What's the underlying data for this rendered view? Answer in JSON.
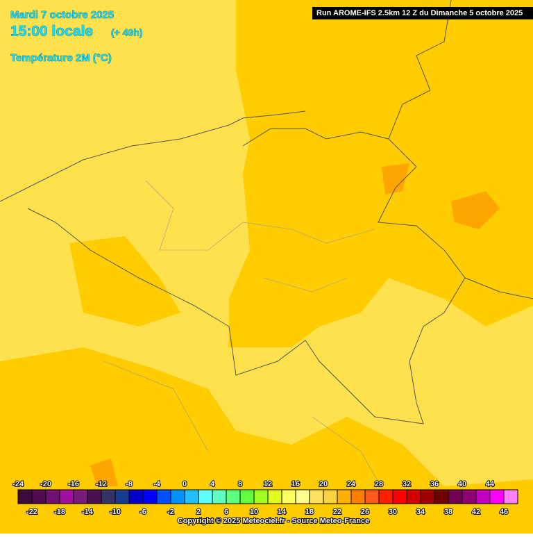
{
  "header": {
    "date": "Mardi 7 octobre 2025",
    "time": "15:00 locale",
    "lead": "(+ 49h)",
    "field": "Température 2M (°C)",
    "run": "Run AROME-IFS 2.5km 12 Z du Dimanche 5 octobre 2025"
  },
  "legend": {
    "ticks": [
      -24,
      -22,
      -20,
      -18,
      -16,
      -14,
      -12,
      -10,
      -8,
      -6,
      -4,
      -2,
      0,
      2,
      4,
      6,
      8,
      10,
      12,
      14,
      16,
      18,
      20,
      22,
      24,
      26,
      28,
      30,
      32,
      34,
      36,
      38,
      40,
      42,
      44,
      46
    ],
    "colors": [
      "#3c0a3c",
      "#500a50",
      "#701070",
      "#a010a0",
      "#7a1a7a",
      "#4a1050",
      "#333366",
      "#1a3c8c",
      "#0000cc",
      "#0000ff",
      "#0050ff",
      "#0090ff",
      "#20c0ff",
      "#60ffff",
      "#60ffc0",
      "#60ff80",
      "#60ff40",
      "#a0ff20",
      "#e0ff20",
      "#ffff60",
      "#ffff90",
      "#ffe060",
      "#ffd040",
      "#ffb000",
      "#ff8000",
      "#ff5a1a",
      "#ff2000",
      "#ff0000",
      "#d00000",
      "#a00000",
      "#700000",
      "#700050",
      "#900070",
      "#c000c0",
      "#ff00ff",
      "#ff80ff"
    ]
  },
  "footer": {
    "copyright": "Copyright © 2025 Meteociel.fr - Source Meteo-France"
  }
}
